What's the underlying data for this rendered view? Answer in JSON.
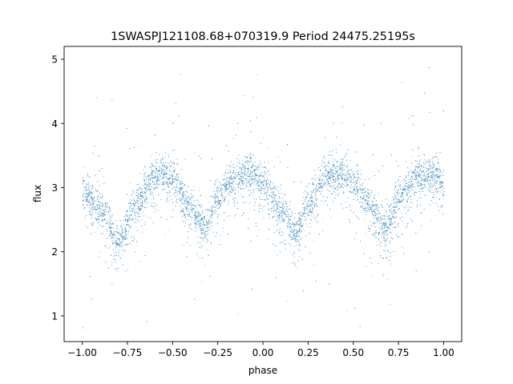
{
  "chart_data": {
    "type": "scatter",
    "title": "1SWASPJ121108.68+070319.9 Period 24475.25195s",
    "xlabel": "phase",
    "ylabel": "flux",
    "xlim": [
      -1.1,
      1.1
    ],
    "ylim": [
      0.6,
      5.2
    ],
    "xticks": [
      -1.0,
      -0.75,
      -0.5,
      -0.25,
      0.0,
      0.25,
      0.5,
      0.75,
      1.0
    ],
    "xtick_labels": [
      "−1.00",
      "−0.75",
      "−0.50",
      "−0.25",
      "0.00",
      "0.25",
      "0.50",
      "0.75",
      "1.00"
    ],
    "yticks": [
      1,
      2,
      3,
      4,
      5
    ],
    "ytick_labels": [
      "1",
      "2",
      "3",
      "4",
      "5"
    ],
    "grid": false,
    "legend": "none",
    "marker_color": "#1f77b4",
    "series": [
      {
        "x_range": [
          -1.0,
          1.0
        ],
        "curve_phase": [
          -1.0,
          -0.9,
          -0.8,
          -0.7,
          -0.6,
          -0.55,
          -0.5,
          -0.4,
          -0.32,
          -0.25,
          -0.15,
          -0.07,
          0.0,
          0.1,
          0.18,
          0.25,
          0.35,
          0.43,
          0.5,
          0.6,
          0.68,
          0.75,
          0.85,
          0.93,
          1.0
        ],
        "curve_flux": [
          3.0,
          2.7,
          2.2,
          2.8,
          3.2,
          3.25,
          3.15,
          2.7,
          2.4,
          2.9,
          3.2,
          3.25,
          3.1,
          2.7,
          2.3,
          2.8,
          3.2,
          3.25,
          3.1,
          2.7,
          2.4,
          2.9,
          3.2,
          3.25,
          3.1
        ]
      }
    ]
  }
}
